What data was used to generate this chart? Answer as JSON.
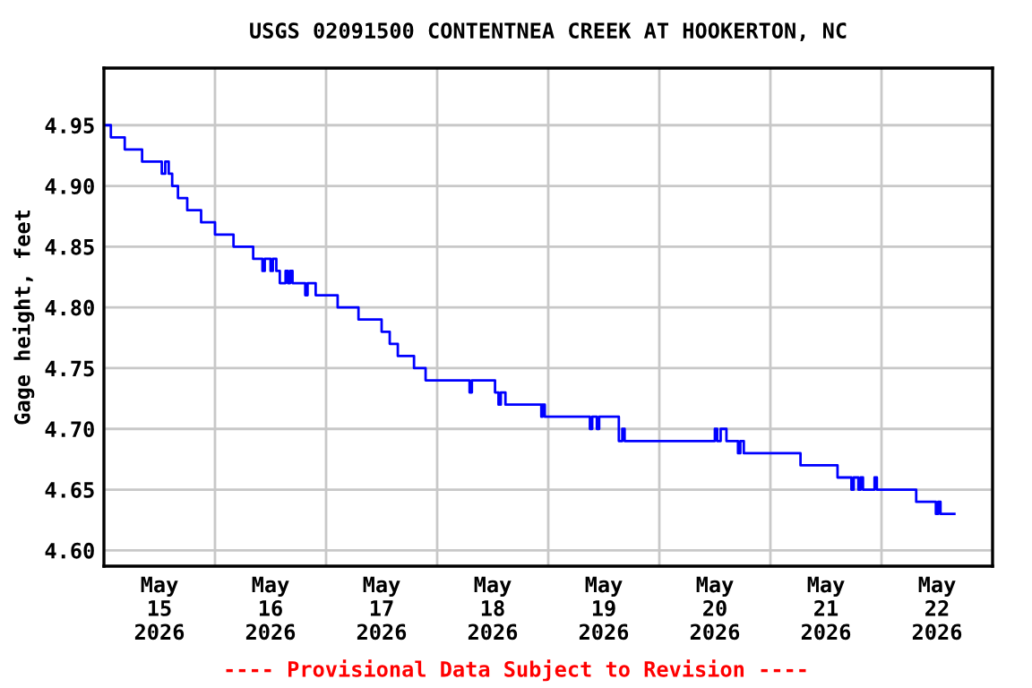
{
  "chart_data": {
    "type": "step",
    "title": "USGS 02091500 CONTENTNEA CREEK AT HOOKERTON, NC",
    "ylabel": "Gage height, feet",
    "annotations": [
      "---- Provisional Data Subject to Revision ----"
    ],
    "series": [
      {
        "color": "#0000ff",
        "x": [
          "2026-05-15T00:00",
          "2026-05-15T01:30",
          "2026-05-15T04:30",
          "2026-05-15T08:15",
          "2026-05-15T12:30",
          "2026-05-15T13:15",
          "2026-05-15T14:00",
          "2026-05-15T14:45",
          "2026-05-15T16:00",
          "2026-05-15T18:00",
          "2026-05-15T21:00",
          "2026-05-16T00:00",
          "2026-05-16T04:00",
          "2026-05-16T08:15",
          "2026-05-16T10:15",
          "2026-05-16T10:45",
          "2026-05-16T12:00",
          "2026-05-16T12:30",
          "2026-05-16T13:15",
          "2026-05-16T14:00",
          "2026-05-16T15:15",
          "2026-05-16T15:45",
          "2026-05-16T16:15",
          "2026-05-16T16:45",
          "2026-05-16T19:30",
          "2026-05-16T20:00",
          "2026-05-16T21:45",
          "2026-05-17T02:30",
          "2026-05-17T07:00",
          "2026-05-17T12:00",
          "2026-05-17T13:45",
          "2026-05-17T15:30",
          "2026-05-17T19:00",
          "2026-05-17T21:30",
          "2026-05-18T07:00",
          "2026-05-18T07:30",
          "2026-05-18T12:30",
          "2026-05-18T13:15",
          "2026-05-18T13:45",
          "2026-05-18T14:45",
          "2026-05-18T22:30",
          "2026-05-18T22:45",
          "2026-05-18T23:15",
          "2026-05-19T09:00",
          "2026-05-19T09:30",
          "2026-05-19T10:30",
          "2026-05-19T11:00",
          "2026-05-19T15:15",
          "2026-05-19T16:00",
          "2026-05-19T16:30",
          "2026-05-20T12:00",
          "2026-05-20T12:30",
          "2026-05-20T13:15",
          "2026-05-20T14:30",
          "2026-05-20T17:00",
          "2026-05-20T17:30",
          "2026-05-20T18:15",
          "2026-05-21T06:30",
          "2026-05-21T14:30",
          "2026-05-21T17:30",
          "2026-05-21T18:00",
          "2026-05-21T19:00",
          "2026-05-21T19:30",
          "2026-05-21T20:00",
          "2026-05-21T22:30",
          "2026-05-21T23:00",
          "2026-05-22T07:30",
          "2026-05-22T11:45",
          "2026-05-22T12:15",
          "2026-05-22T12:45",
          "2026-05-22T15:45"
        ],
        "values": [
          4.95,
          4.94,
          4.93,
          4.92,
          4.91,
          4.92,
          4.91,
          4.9,
          4.89,
          4.88,
          4.87,
          4.86,
          4.85,
          4.84,
          4.83,
          4.84,
          4.83,
          4.84,
          4.83,
          4.82,
          4.83,
          4.82,
          4.83,
          4.82,
          4.81,
          4.82,
          4.81,
          4.8,
          4.79,
          4.78,
          4.77,
          4.76,
          4.75,
          4.74,
          4.73,
          4.74,
          4.73,
          4.72,
          4.73,
          4.72,
          4.71,
          4.72,
          4.71,
          4.7,
          4.71,
          4.7,
          4.71,
          4.69,
          4.7,
          4.69,
          4.7,
          4.69,
          4.7,
          4.69,
          4.68,
          4.69,
          4.68,
          4.67,
          4.66,
          4.65,
          4.66,
          4.65,
          4.66,
          4.65,
          4.66,
          4.65,
          4.64,
          4.63,
          4.64,
          4.63,
          4.63
        ]
      }
    ],
    "xlim": [
      "2026-05-15T00:00",
      "2026-05-23T00:00"
    ],
    "xticks": [
      {
        "value": "2026-05-15T00:00",
        "label": null
      },
      {
        "value": "2026-05-15T12:00",
        "label": "May\n15\n2026"
      },
      {
        "value": "2026-05-16T00:00",
        "label": null
      },
      {
        "value": "2026-05-16T12:00",
        "label": "May\n16\n2026"
      },
      {
        "value": "2026-05-17T00:00",
        "label": null
      },
      {
        "value": "2026-05-17T12:00",
        "label": "May\n17\n2026"
      },
      {
        "value": "2026-05-18T00:00",
        "label": null
      },
      {
        "value": "2026-05-18T12:00",
        "label": "May\n18\n2026"
      },
      {
        "value": "2026-05-19T00:00",
        "label": null
      },
      {
        "value": "2026-05-19T12:00",
        "label": "May\n19\n2026"
      },
      {
        "value": "2026-05-20T00:00",
        "label": null
      },
      {
        "value": "2026-05-20T12:00",
        "label": "May\n20\n2026"
      },
      {
        "value": "2026-05-21T00:00",
        "label": null
      },
      {
        "value": "2026-05-21T12:00",
        "label": "May\n21\n2026"
      },
      {
        "value": "2026-05-22T00:00",
        "label": null
      },
      {
        "value": "2026-05-22T12:00",
        "label": "May\n22\n2026"
      },
      {
        "value": "2026-05-23T00:00",
        "label": null
      }
    ],
    "ylim": [
      4.587,
      4.997
    ],
    "yticks": [
      {
        "value": 4.6,
        "label": "4.60"
      },
      {
        "value": 4.65,
        "label": "4.65"
      },
      {
        "value": 4.7,
        "label": "4.70"
      },
      {
        "value": 4.75,
        "label": "4.75"
      },
      {
        "value": 4.8,
        "label": "4.80"
      },
      {
        "value": 4.85,
        "label": "4.85"
      },
      {
        "value": 4.9,
        "label": "4.90"
      },
      {
        "value": 4.95,
        "label": "4.95"
      }
    ],
    "grid": true,
    "legend": false
  }
}
